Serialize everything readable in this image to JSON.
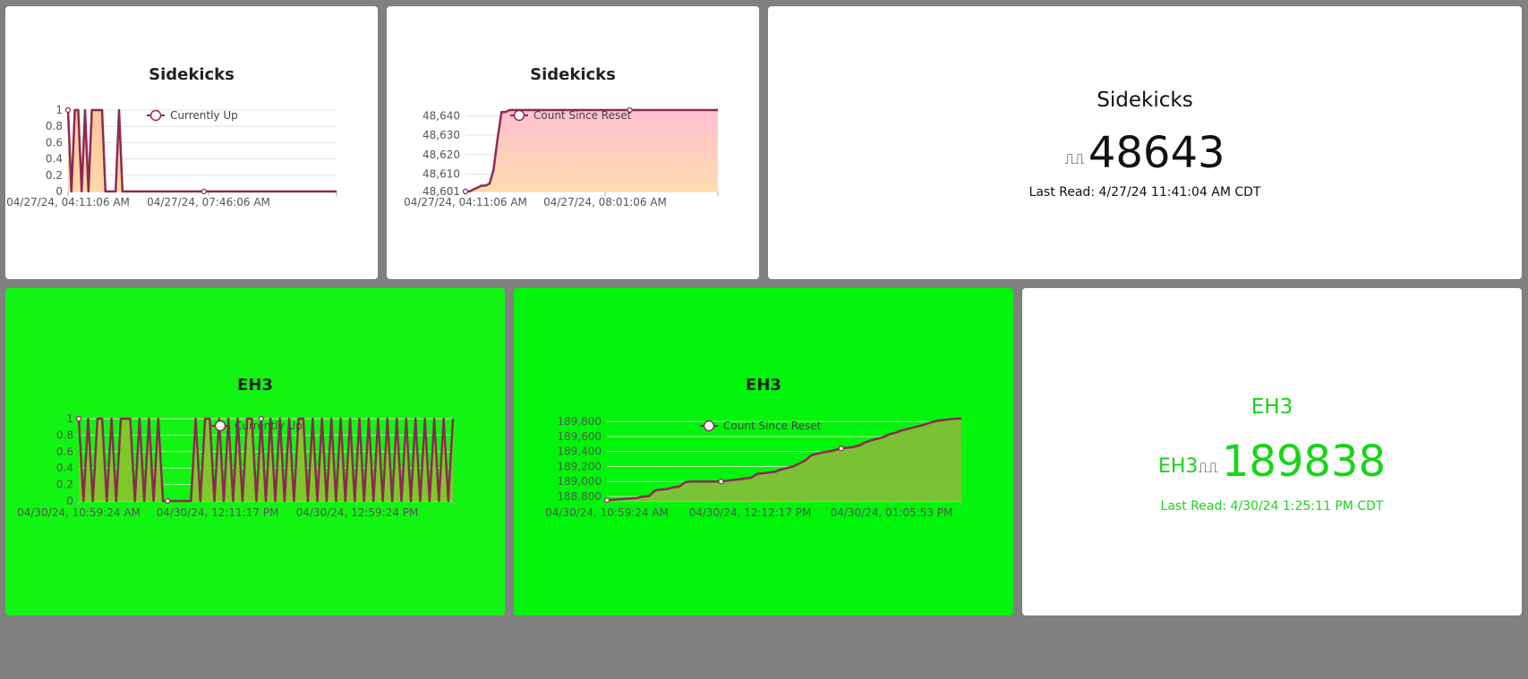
{
  "colors": {
    "line": "#8c2a52",
    "grid": "#dde4ee",
    "green_text": "#16d616"
  },
  "cards": [
    {
      "id": "sk-up",
      "title": "Sidekicks",
      "chart_data": {
        "type": "area",
        "title": "Sidekicks",
        "series": [
          {
            "name": "Currently Up",
            "values": [
              1,
              0,
              1,
              1,
              0,
              1,
              0,
              1,
              1,
              1,
              1,
              0,
              0,
              0,
              0,
              1,
              0,
              0,
              0,
              0,
              0,
              0,
              0,
              0,
              0,
              0,
              0,
              0,
              0,
              0,
              0,
              0,
              0,
              0,
              0,
              0,
              0,
              0,
              0,
              0,
              0,
              0,
              0,
              0,
              0,
              0,
              0,
              0,
              0,
              0,
              0,
              0,
              0,
              0,
              0,
              0,
              0,
              0,
              0,
              0,
              0,
              0,
              0,
              0,
              0,
              0,
              0,
              0,
              0,
              0,
              0,
              0,
              0,
              0,
              0,
              0,
              0,
              0,
              0,
              0
            ]
          }
        ],
        "x_tick_labels": [
          "04/27/24, 04:11:06 AM",
          "04/27/24, 07:46:06 AM"
        ],
        "y_ticks": [
          "0",
          "0.2",
          "0.4",
          "0.6",
          "0.8",
          "1"
        ],
        "ylim": [
          0,
          1
        ],
        "legend": "top-center",
        "fill": [
          "#ffc49e",
          "#ffd9a8"
        ]
      }
    },
    {
      "id": "sk-count",
      "title": "Sidekicks",
      "chart_data": {
        "type": "area",
        "title": "Sidekicks",
        "series": [
          {
            "name": "Count Since Reset",
            "values": [
              48601,
              48601,
              48602,
              48603,
              48604,
              48604,
              48605,
              48612,
              48628,
              48642,
              48642,
              48643,
              48643,
              48643,
              48643,
              48643,
              48643,
              48643,
              48643,
              48643,
              48643,
              48643,
              48643,
              48643,
              48643,
              48643,
              48643,
              48643,
              48643,
              48643,
              48643,
              48643,
              48643,
              48643,
              48643,
              48643,
              48643,
              48643,
              48643,
              48643,
              48643,
              48643,
              48643,
              48643,
              48643,
              48643,
              48643,
              48643,
              48643,
              48643,
              48643,
              48643,
              48643,
              48643,
              48643,
              48643,
              48643,
              48643,
              48643,
              48643,
              48643,
              48643,
              48643,
              48643
            ]
          }
        ],
        "x_tick_labels": [
          "04/27/24, 04:11:06 AM",
          "04/27/24, 08:01:06 AM"
        ],
        "y_ticks": [
          "48,601",
          "48,610",
          "48,620",
          "48,630",
          "48,640"
        ],
        "y_tick_values": [
          48601,
          48610,
          48620,
          48630,
          48640
        ],
        "ylim": [
          48601,
          48643
        ],
        "legend": "top-center",
        "fill": [
          "#ffc0cf",
          "#ffdcae"
        ]
      }
    },
    {
      "id": "sk-stat",
      "title": "Sidekicks",
      "prefix": "",
      "icon": "⎍⎍",
      "value": "48643",
      "last_read_label": "Last Read: ",
      "last_read_value": "4/27/24 11:41:04 AM CDT",
      "color": "#111111"
    },
    {
      "id": "eh3-up",
      "title": "EH3",
      "chart_data": {
        "type": "area",
        "title": "EH3",
        "series": [
          {
            "name": "Currently Up",
            "values": [
              1,
              0,
              1,
              0,
              1,
              1,
              0,
              1,
              0,
              1,
              1,
              1,
              0,
              1,
              0,
              1,
              0,
              1,
              0,
              0,
              0,
              0,
              0,
              0,
              0,
              1,
              0,
              1,
              1,
              0,
              1,
              0,
              1,
              0,
              1,
              0,
              1,
              1,
              0,
              1,
              0,
              1,
              0,
              1,
              0,
              1,
              0,
              1,
              1,
              0,
              1,
              0,
              1,
              0,
              1,
              0,
              1,
              0,
              1,
              0,
              1,
              0,
              1,
              0,
              1,
              0,
              1,
              0,
              1,
              0,
              1,
              0,
              1,
              0,
              1,
              0,
              1,
              0,
              1,
              0,
              1
            ]
          }
        ],
        "x_tick_labels": [
          "04/30/24, 10:59:24 AM",
          "04/30/24, 12:11:17 PM",
          "04/30/24, 12:59:24 PM"
        ],
        "y_ticks": [
          "0",
          "0.2",
          "0.4",
          "0.6",
          "0.8",
          "1"
        ],
        "ylim": [
          0,
          1
        ],
        "legend": "top-center",
        "fill": [
          "#7fc82a",
          "#7fc82a"
        ]
      }
    },
    {
      "id": "eh3-count",
      "title": "EH3",
      "chart_data": {
        "type": "area",
        "title": "EH3",
        "series": [
          {
            "name": "Count Since Reset",
            "values": [
              188750,
              188755,
              188760,
              188770,
              188775,
              188780,
              188800,
              188805,
              188880,
              188890,
              188900,
              188920,
              188930,
              188990,
              189000,
              189000,
              189000,
              189000,
              189000,
              189000,
              189010,
              189020,
              189030,
              189040,
              189050,
              189100,
              189110,
              189120,
              189130,
              189160,
              189180,
              189200,
              189240,
              189280,
              189350,
              189370,
              189390,
              189400,
              189420,
              189440,
              189450,
              189460,
              189480,
              189520,
              189550,
              189570,
              189590,
              189630,
              189650,
              189680,
              189700,
              189720,
              189740,
              189760,
              189790,
              189810,
              189820,
              189830,
              189838,
              189838
            ]
          }
        ],
        "x_tick_labels": [
          "04/30/24, 10:59:24 AM",
          "04/30/24, 12:12:17 PM",
          "04/30/24, 01:05:53 PM"
        ],
        "y_ticks": [
          "188,800",
          "189,000",
          "189,200",
          "189,400",
          "189,600",
          "189,800"
        ],
        "y_tick_values": [
          188800,
          189000,
          189200,
          189400,
          189600,
          189800
        ],
        "ylim": [
          188740,
          189838
        ],
        "legend": "top-center",
        "fill": [
          "#78c034",
          "#7cc236"
        ]
      }
    },
    {
      "id": "eh3-stat",
      "title": "EH3",
      "prefix": "EH3",
      "icon": "⎍⎍",
      "value": "189838",
      "last_read_label": "Last Read: ",
      "last_read_value": "4/30/24 1:25:11 PM CDT",
      "color": "#16d616"
    }
  ]
}
